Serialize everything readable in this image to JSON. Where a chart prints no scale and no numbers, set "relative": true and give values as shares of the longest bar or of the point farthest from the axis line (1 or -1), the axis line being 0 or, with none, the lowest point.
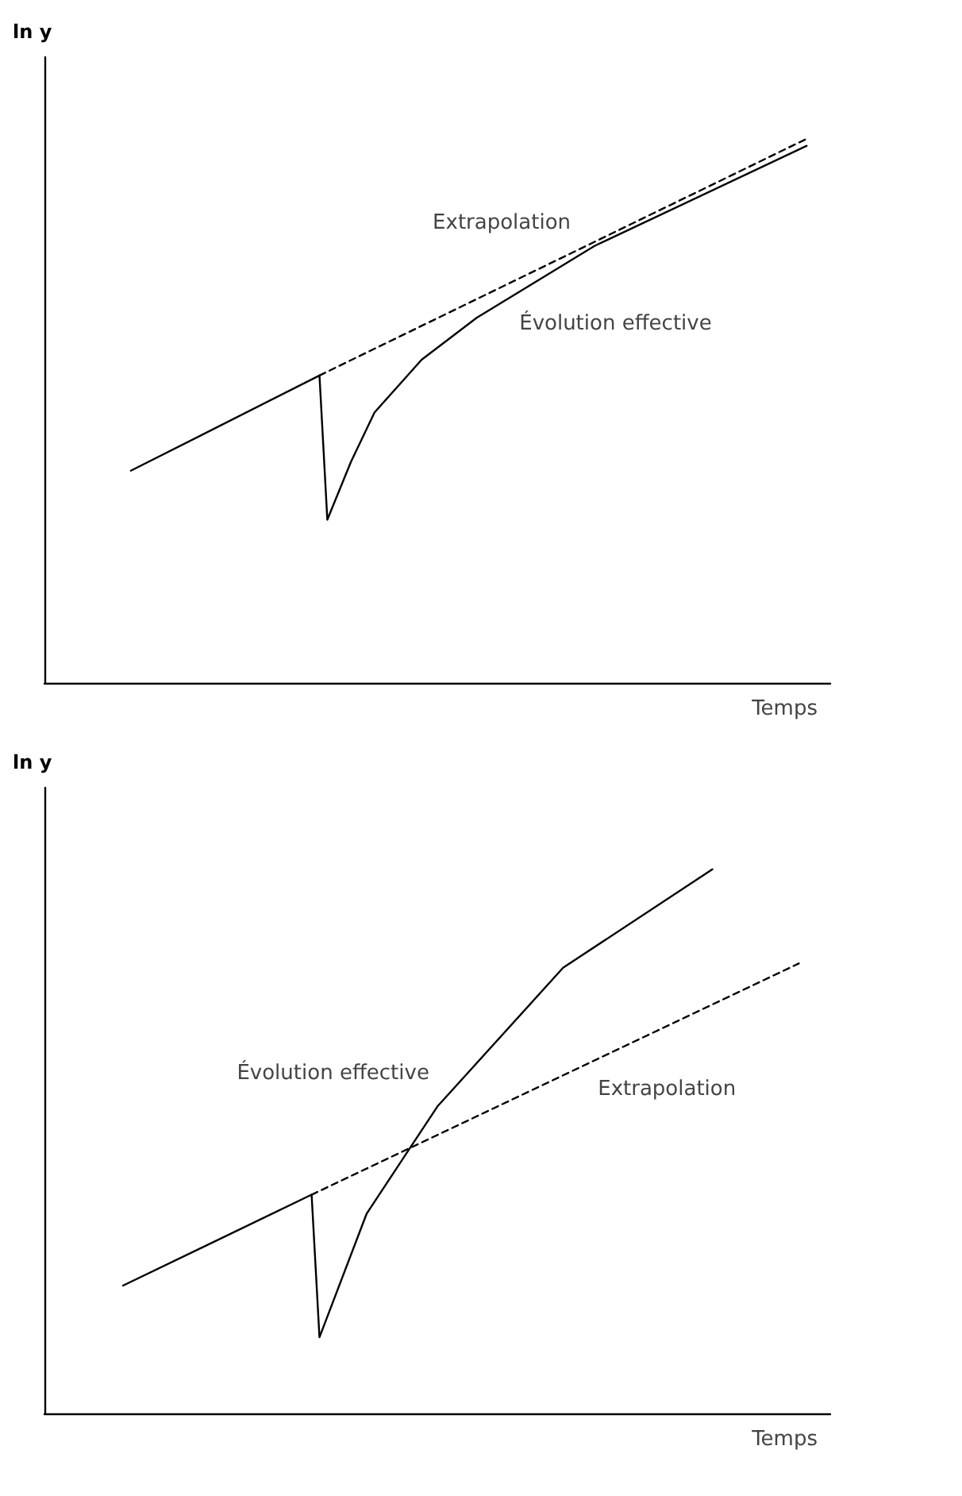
{
  "chart_data": [
    {
      "type": "line",
      "relative": true,
      "xlabel": "Temps",
      "ylabel": "ln y",
      "grid": false,
      "legend": false,
      "marker": "none",
      "categories": [
        null,
        null,
        null,
        null,
        null,
        null,
        null,
        null,
        null,
        null,
        null,
        null,
        null,
        null,
        null,
        null,
        null,
        null,
        null,
        null,
        null,
        null,
        null,
        null,
        null,
        null,
        null,
        null,
        null,
        null,
        null,
        null,
        null,
        null,
        null,
        null,
        null,
        null,
        null,
        null,
        null,
        null,
        null,
        null,
        null,
        null,
        null,
        null,
        null,
        null,
        null,
        null,
        null,
        null,
        null,
        null,
        null,
        null,
        null,
        null,
        null,
        null,
        null,
        null,
        null,
        null,
        null,
        null,
        null,
        null,
        null,
        null,
        null,
        null,
        null,
        null,
        null,
        null,
        null,
        null,
        null,
        null,
        null,
        null,
        null,
        null,
        null,
        null,
        null,
        null,
        null,
        null,
        null,
        null,
        null,
        null,
        null,
        null,
        null,
        null,
        null
      ],
      "series": [
        {
          "name": "Évolution effective",
          "color": "#000000",
          "line_style": "solid",
          "values": [
            null,
            null,
            null,
            null,
            null,
            null,
            null,
            null,
            null,
            null,
            null,
            0.39,
            null,
            null,
            null,
            null,
            null,
            null,
            null,
            null,
            null,
            null,
            null,
            null,
            null,
            null,
            null,
            null,
            null,
            null,
            null,
            null,
            null,
            null,
            null,
            0.565,
            0.3,
            null,
            null,
            0.406,
            null,
            null,
            0.497,
            null,
            null,
            null,
            null,
            null,
            0.594,
            null,
            null,
            null,
            null,
            null,
            null,
            0.671,
            null,
            null,
            null,
            null,
            null,
            null,
            null,
            null,
            null,
            null,
            null,
            null,
            null,
            null,
            0.803,
            null,
            null,
            null,
            null,
            null,
            null,
            null,
            null,
            null,
            null,
            null,
            null,
            null,
            null,
            null,
            null,
            null,
            null,
            null,
            null,
            null,
            null,
            null,
            null,
            null,
            null,
            0.987,
            null,
            null,
            null
          ]
        },
        {
          "name": "Extrapolation",
          "color": "#000000",
          "line_style": "dashed",
          "values": [
            null,
            null,
            null,
            null,
            null,
            null,
            null,
            null,
            null,
            null,
            null,
            null,
            null,
            null,
            null,
            null,
            null,
            null,
            null,
            null,
            null,
            null,
            null,
            null,
            null,
            null,
            null,
            null,
            null,
            null,
            null,
            null,
            null,
            null,
            null,
            0.565,
            null,
            null,
            null,
            null,
            null,
            null,
            null,
            null,
            null,
            null,
            null,
            null,
            null,
            null,
            null,
            null,
            null,
            null,
            null,
            null,
            null,
            null,
            null,
            null,
            null,
            null,
            null,
            null,
            null,
            null,
            null,
            null,
            null,
            null,
            null,
            null,
            null,
            null,
            null,
            null,
            null,
            null,
            null,
            null,
            null,
            null,
            null,
            null,
            null,
            null,
            null,
            null,
            null,
            null,
            null,
            null,
            null,
            null,
            null,
            null,
            null,
            1,
            null,
            null,
            null
          ]
        }
      ]
    },
    {
      "type": "line",
      "relative": true,
      "xlabel": "Temps",
      "ylabel": "ln y",
      "grid": false,
      "legend": false,
      "marker": "none",
      "categories": [
        null,
        null,
        null,
        null,
        null,
        null,
        null,
        null,
        null,
        null,
        null,
        null,
        null,
        null,
        null,
        null,
        null,
        null,
        null,
        null,
        null,
        null,
        null,
        null,
        null,
        null,
        null,
        null,
        null,
        null,
        null,
        null,
        null,
        null,
        null,
        null,
        null,
        null,
        null,
        null,
        null,
        null,
        null,
        null,
        null,
        null,
        null,
        null,
        null,
        null,
        null,
        null,
        null,
        null,
        null,
        null,
        null,
        null,
        null,
        null,
        null,
        null,
        null,
        null,
        null,
        null,
        null,
        null,
        null,
        null,
        null,
        null,
        null,
        null,
        null,
        null,
        null,
        null,
        null,
        null,
        null,
        null,
        null,
        null,
        null,
        null,
        null,
        null,
        null,
        null,
        null,
        null,
        null,
        null,
        null,
        null,
        null,
        null,
        null,
        null,
        null
      ],
      "series": [
        {
          "name": "Évolution effective",
          "color": "#000000",
          "line_style": "solid",
          "values": [
            null,
            null,
            null,
            null,
            null,
            null,
            null,
            null,
            null,
            null,
            0.235,
            null,
            null,
            null,
            null,
            null,
            null,
            null,
            null,
            null,
            null,
            null,
            null,
            null,
            null,
            null,
            null,
            null,
            null,
            null,
            null,
            null,
            null,
            null,
            0.402,
            0.14,
            null,
            null,
            null,
            null,
            null,
            0.367,
            null,
            null,
            null,
            null,
            null,
            null,
            null,
            null,
            0.564,
            null,
            null,
            null,
            null,
            null,
            null,
            null,
            null,
            null,
            null,
            null,
            null,
            null,
            null,
            null,
            0.819,
            null,
            null,
            null,
            null,
            null,
            null,
            null,
            null,
            null,
            null,
            null,
            null,
            null,
            null,
            null,
            null,
            null,
            null,
            1.0,
            null,
            null,
            null,
            null,
            null,
            null,
            null,
            null,
            null,
            null,
            null,
            null,
            null,
            null,
            null
          ]
        },
        {
          "name": "Extrapolation",
          "color": "#000000",
          "line_style": "dashed",
          "values": [
            null,
            null,
            null,
            null,
            null,
            null,
            null,
            null,
            null,
            null,
            null,
            null,
            null,
            null,
            null,
            null,
            null,
            null,
            null,
            null,
            null,
            null,
            null,
            null,
            null,
            null,
            null,
            null,
            null,
            null,
            null,
            null,
            null,
            null,
            0.402,
            null,
            null,
            null,
            null,
            null,
            null,
            null,
            null,
            null,
            null,
            null,
            null,
            null,
            null,
            null,
            null,
            null,
            null,
            null,
            null,
            null,
            null,
            null,
            null,
            null,
            null,
            null,
            null,
            null,
            null,
            null,
            null,
            null,
            null,
            null,
            null,
            null,
            null,
            null,
            null,
            null,
            null,
            null,
            null,
            null,
            null,
            null,
            null,
            null,
            null,
            null,
            null,
            null,
            null,
            null,
            null,
            null,
            null,
            null,
            null,
            null,
            0.827,
            null,
            null,
            null,
            null
          ]
        }
      ]
    }
  ]
}
